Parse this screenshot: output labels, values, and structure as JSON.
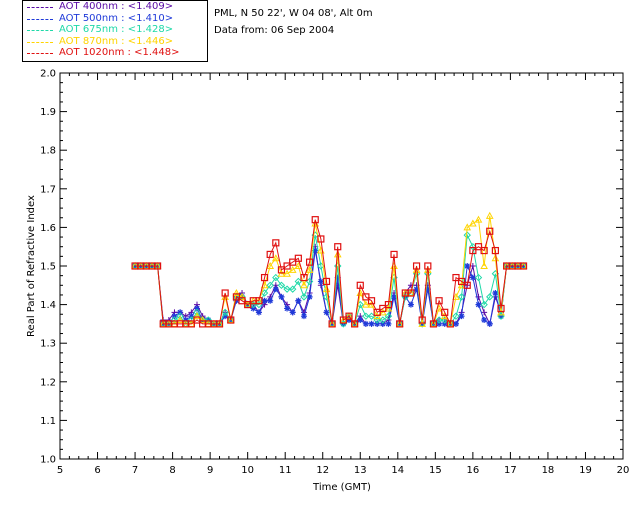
{
  "info": {
    "site": "PML, N 50 22', W 04 08', Alt 0m",
    "date": "Data from: 06 Sep 2004"
  },
  "legend": [
    {
      "label": "AOT  400nm : <1.409>",
      "color": "#5a0ba6"
    },
    {
      "label": "AOT  500nm : <1.410>",
      "color": "#1f3ad9"
    },
    {
      "label": "AOT  675nm : <1.428>",
      "color": "#1fd9a8"
    },
    {
      "label": "AOT  870nm : <1.446>",
      "color": "#ffd400"
    },
    {
      "label": "AOT 1020nm : <1.448>",
      "color": "#e01010"
    }
  ],
  "chart_data": {
    "type": "line",
    "xlabel": "Time (GMT)",
    "ylabel": "Real Part of Refractive Index",
    "xlim": [
      5,
      20
    ],
    "ylim": [
      1.0,
      2.0
    ],
    "xticks": [
      "5",
      "6",
      "7",
      "8",
      "9",
      "10",
      "11",
      "12",
      "13",
      "14",
      "15",
      "16",
      "17",
      "18",
      "19",
      "20"
    ],
    "yticks": [
      "1.0",
      "1.1",
      "1.2",
      "1.3",
      "1.4",
      "1.5",
      "1.6",
      "1.7",
      "1.8",
      "1.9",
      "2.0"
    ],
    "x": [
      7.0,
      7.15,
      7.3,
      7.45,
      7.6,
      7.75,
      7.9,
      8.05,
      8.2,
      8.35,
      8.5,
      8.65,
      8.8,
      8.95,
      9.1,
      9.25,
      9.4,
      9.55,
      9.7,
      9.85,
      10.0,
      10.15,
      10.3,
      10.45,
      10.6,
      10.75,
      10.9,
      11.05,
      11.2,
      11.35,
      11.5,
      11.65,
      11.8,
      11.95,
      12.1,
      12.25,
      12.4,
      12.55,
      12.7,
      12.85,
      13.0,
      13.15,
      13.3,
      13.45,
      13.6,
      13.75,
      13.9,
      14.05,
      14.2,
      14.35,
      14.5,
      14.65,
      14.8,
      14.95,
      15.1,
      15.25,
      15.4,
      15.55,
      15.7,
      15.85,
      16.0,
      16.15,
      16.3,
      16.45,
      16.6,
      16.75,
      16.9,
      17.05,
      17.2,
      17.35
    ],
    "series": [
      {
        "name": "AOT  400nm : <1.409>",
        "marker": "plus",
        "values": [
          1.5,
          1.5,
          1.5,
          1.5,
          1.5,
          1.36,
          1.36,
          1.38,
          1.38,
          1.37,
          1.38,
          1.4,
          1.37,
          1.36,
          1.35,
          1.35,
          1.38,
          1.36,
          1.42,
          1.43,
          1.4,
          1.4,
          1.38,
          1.4,
          1.42,
          1.45,
          1.42,
          1.4,
          1.38,
          1.41,
          1.38,
          1.43,
          1.55,
          1.45,
          1.38,
          1.35,
          1.45,
          1.35,
          1.37,
          1.35,
          1.37,
          1.35,
          1.35,
          1.35,
          1.35,
          1.36,
          1.43,
          1.35,
          1.43,
          1.45,
          1.45,
          1.35,
          1.45,
          1.35,
          1.36,
          1.36,
          1.35,
          1.35,
          1.38,
          1.45,
          1.5,
          1.42,
          1.38,
          1.35,
          1.42,
          1.38,
          1.5,
          1.5,
          1.5,
          1.5
        ]
      },
      {
        "name": "AOT  500nm : <1.410>",
        "marker": "star",
        "values": [
          1.5,
          1.5,
          1.5,
          1.5,
          1.5,
          1.35,
          1.35,
          1.37,
          1.38,
          1.36,
          1.37,
          1.39,
          1.36,
          1.36,
          1.35,
          1.35,
          1.37,
          1.36,
          1.41,
          1.42,
          1.4,
          1.39,
          1.38,
          1.41,
          1.41,
          1.44,
          1.42,
          1.39,
          1.38,
          1.41,
          1.37,
          1.42,
          1.54,
          1.46,
          1.38,
          1.35,
          1.47,
          1.35,
          1.36,
          1.35,
          1.36,
          1.35,
          1.35,
          1.35,
          1.35,
          1.35,
          1.42,
          1.35,
          1.42,
          1.4,
          1.44,
          1.35,
          1.44,
          1.35,
          1.35,
          1.35,
          1.35,
          1.35,
          1.37,
          1.5,
          1.47,
          1.4,
          1.36,
          1.35,
          1.43,
          1.37,
          1.5,
          1.5,
          1.5,
          1.5
        ]
      },
      {
        "name": "AOT  675nm : <1.428>",
        "marker": "diamond",
        "values": [
          1.5,
          1.5,
          1.5,
          1.5,
          1.5,
          1.35,
          1.35,
          1.36,
          1.37,
          1.35,
          1.36,
          1.38,
          1.36,
          1.36,
          1.35,
          1.35,
          1.38,
          1.36,
          1.42,
          1.42,
          1.4,
          1.4,
          1.4,
          1.43,
          1.45,
          1.47,
          1.45,
          1.44,
          1.44,
          1.46,
          1.42,
          1.46,
          1.58,
          1.5,
          1.42,
          1.35,
          1.5,
          1.35,
          1.37,
          1.35,
          1.4,
          1.37,
          1.37,
          1.36,
          1.36,
          1.37,
          1.47,
          1.35,
          1.42,
          1.43,
          1.48,
          1.35,
          1.48,
          1.35,
          1.36,
          1.36,
          1.35,
          1.37,
          1.42,
          1.58,
          1.55,
          1.47,
          1.4,
          1.42,
          1.48,
          1.37,
          1.5,
          1.5,
          1.5,
          1.5
        ]
      },
      {
        "name": "AOT  870nm : <1.446>",
        "marker": "triangle",
        "values": [
          1.5,
          1.5,
          1.5,
          1.5,
          1.5,
          1.35,
          1.35,
          1.35,
          1.36,
          1.35,
          1.35,
          1.37,
          1.36,
          1.35,
          1.35,
          1.35,
          1.42,
          1.36,
          1.43,
          1.42,
          1.4,
          1.41,
          1.41,
          1.45,
          1.5,
          1.52,
          1.48,
          1.48,
          1.49,
          1.5,
          1.45,
          1.49,
          1.61,
          1.54,
          1.44,
          1.35,
          1.53,
          1.36,
          1.37,
          1.35,
          1.43,
          1.4,
          1.4,
          1.37,
          1.38,
          1.39,
          1.5,
          1.35,
          1.43,
          1.43,
          1.49,
          1.35,
          1.49,
          1.35,
          1.39,
          1.37,
          1.35,
          1.42,
          1.45,
          1.6,
          1.61,
          1.62,
          1.5,
          1.63,
          1.52,
          1.38,
          1.5,
          1.5,
          1.5,
          1.5
        ]
      },
      {
        "name": "AOT 1020nm : <1.448>",
        "marker": "square",
        "values": [
          1.5,
          1.5,
          1.5,
          1.5,
          1.5,
          1.35,
          1.35,
          1.35,
          1.35,
          1.35,
          1.35,
          1.36,
          1.35,
          1.35,
          1.35,
          1.35,
          1.43,
          1.36,
          1.42,
          1.41,
          1.4,
          1.41,
          1.41,
          1.47,
          1.53,
          1.56,
          1.49,
          1.5,
          1.51,
          1.52,
          1.47,
          1.51,
          1.62,
          1.57,
          1.46,
          1.35,
          1.55,
          1.36,
          1.37,
          1.35,
          1.45,
          1.42,
          1.41,
          1.38,
          1.39,
          1.4,
          1.53,
          1.35,
          1.43,
          1.43,
          1.5,
          1.36,
          1.5,
          1.35,
          1.41,
          1.38,
          1.35,
          1.47,
          1.46,
          1.45,
          1.54,
          1.55,
          1.54,
          1.59,
          1.54,
          1.39,
          1.5,
          1.5,
          1.5,
          1.5
        ]
      }
    ]
  }
}
